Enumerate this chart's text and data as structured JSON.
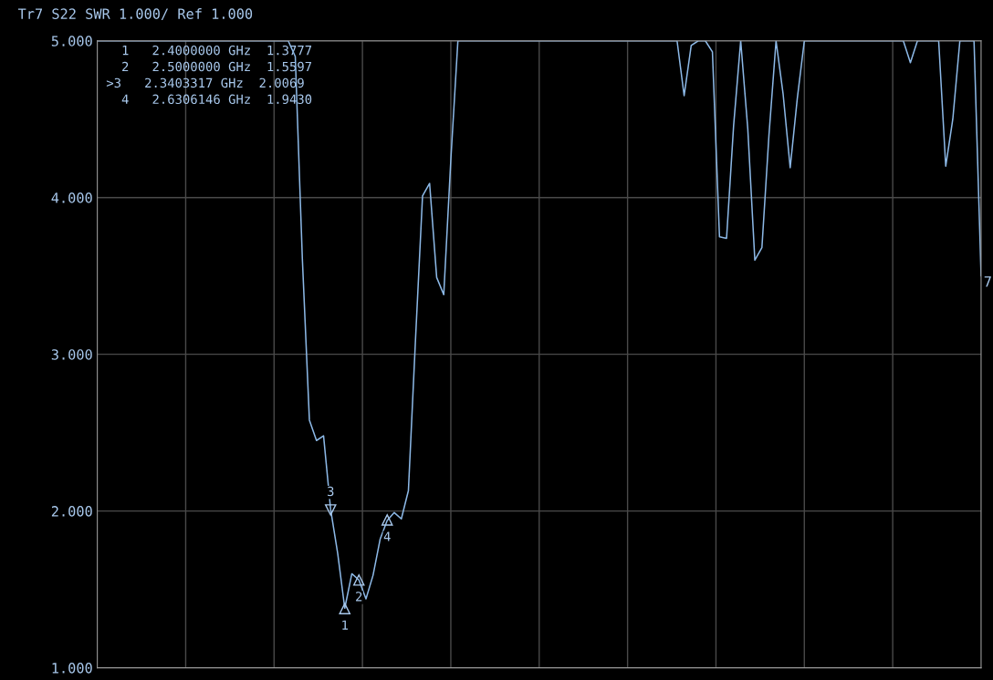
{
  "chart_data": {
    "type": "line",
    "title": "Tr7 S22 SWR 1.000/ Ref 1.000",
    "categories": [
      null,
      null,
      null,
      null,
      null,
      null,
      null,
      null,
      null,
      null,
      null,
      null,
      null,
      null,
      null,
      null,
      null,
      null,
      null,
      null,
      null,
      null,
      null,
      null,
      null,
      null,
      null,
      null,
      null,
      null,
      null,
      null,
      null,
      null,
      null,
      null,
      null,
      null,
      null,
      null,
      null,
      null,
      null,
      null,
      null,
      null,
      null,
      null,
      null,
      null,
      null,
      null,
      null,
      null,
      null,
      null,
      null,
      null,
      null,
      null,
      null,
      null,
      null,
      null,
      null,
      null,
      null,
      null,
      null,
      null,
      null,
      null,
      null,
      null,
      null,
      null,
      null,
      null,
      null,
      null,
      null,
      null,
      null,
      null,
      null,
      null,
      null,
      null,
      null,
      null,
      null,
      null,
      null,
      null,
      null,
      null,
      null,
      null,
      null,
      null,
      null,
      null,
      null,
      null,
      null,
      null,
      null,
      null,
      null,
      null,
      null,
      null,
      null,
      null,
      null,
      null,
      null,
      null,
      null,
      null,
      null,
      null,
      null,
      null,
      null,
      null
    ],
    "series": [
      {
        "color": "#8cb8e6",
        "values": [
          5.0,
          5.0,
          5.0,
          5.0,
          5.0,
          5.0,
          5.0,
          5.0,
          5.0,
          5.0,
          5.0,
          5.0,
          5.0,
          5.0,
          5.0,
          5.0,
          5.0,
          5.0,
          5.0,
          5.0,
          5.0,
          5.0,
          5.0,
          5.0,
          5.0,
          5.0,
          5.0,
          5.0,
          4.9,
          3.61,
          2.58,
          2.45,
          2.48,
          2.01,
          1.73,
          1.38,
          1.6,
          1.56,
          1.44,
          1.59,
          1.82,
          1.94,
          1.99,
          1.95,
          2.13,
          3.09,
          4.01,
          4.09,
          3.49,
          3.38,
          4.24,
          5.0,
          5.0,
          5.0,
          5.0,
          5.0,
          5.0,
          5.0,
          5.0,
          5.0,
          5.0,
          5.0,
          5.0,
          5.0,
          5.0,
          5.0,
          5.0,
          5.0,
          5.0,
          5.0,
          5.0,
          5.0,
          5.0,
          5.0,
          5.0,
          5.0,
          5.0,
          5.0,
          5.0,
          5.0,
          5.0,
          5.0,
          5.0,
          4.65,
          4.97,
          5.0,
          5.0,
          4.93,
          3.75,
          3.74,
          4.46,
          5.0,
          4.44,
          3.6,
          3.68,
          4.4,
          5.0,
          4.66,
          4.19,
          4.63,
          5.0,
          5.0,
          5.0,
          5.0,
          5.0,
          5.0,
          5.0,
          5.0,
          5.0,
          5.0,
          5.0,
          5.0,
          5.0,
          5.0,
          5.0,
          4.86,
          5.0,
          5.0,
          5.0,
          5.0,
          4.2,
          4.5,
          5.0,
          5.0,
          5.0,
          3.5
        ]
      }
    ],
    "ylim": [
      1.0,
      5.0
    ],
    "yticks": [
      {
        "value": 1,
        "label": "1.000"
      },
      {
        "value": 2,
        "label": "2.000"
      },
      {
        "value": 3,
        "label": "3.000"
      },
      {
        "value": 4,
        "label": "4.000"
      },
      {
        "value": 5,
        "label": "5.000"
      }
    ],
    "grid": true,
    "annotations": [
      "  1   2.4000000 GHz  1.3777",
      "  2   2.5000000 GHz  1.5597",
      ">3   2.3403317 GHz  2.0069",
      "  4   2.6306146 GHz  1.9430",
      {
        "text": "1",
        "y": 1.3777
      },
      {
        "text": "2",
        "y": 1.5597
      },
      {
        "text": "3",
        "y": 2.0069
      },
      {
        "text": "4",
        "y": 1.943
      },
      "7"
    ]
  }
}
